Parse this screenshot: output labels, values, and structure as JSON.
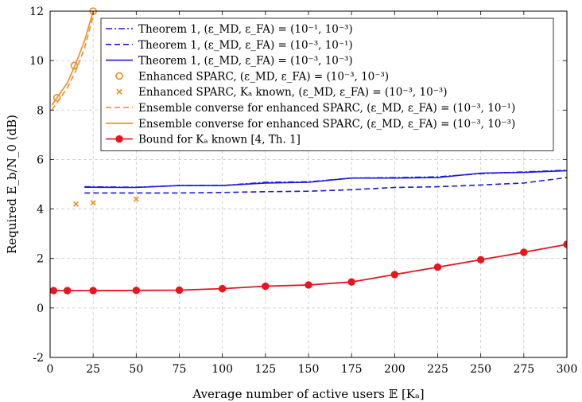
{
  "chart_data": {
    "type": "line",
    "xlabel": "Average number of active users 𝔼 [Kₐ]",
    "ylabel": "Required E_b/N_0 (dB)",
    "xlim": [
      0,
      300
    ],
    "ylim": [
      -2,
      12
    ],
    "xticks": [
      0,
      25,
      50,
      75,
      100,
      125,
      150,
      175,
      200,
      225,
      250,
      275,
      300
    ],
    "yticks": [
      -2,
      0,
      2,
      4,
      6,
      8,
      10,
      12
    ],
    "grid": true,
    "legend_position": "top-right",
    "series": [
      {
        "name": "Theorem 1, (ε_MD, ε_FA) = (10⁻¹, 10⁻³)",
        "color": "#1a1adc",
        "style": "dashdot",
        "marker": "none",
        "x": [
          20,
          50,
          75,
          100,
          125,
          150,
          175,
          200,
          225,
          250,
          275,
          300
        ],
        "y": [
          4.9,
          4.88,
          4.95,
          4.95,
          5.08,
          5.1,
          5.25,
          5.27,
          5.3,
          5.43,
          5.5,
          5.57
        ]
      },
      {
        "name": "Theorem 1, (ε_MD, ε_FA) = (10⁻³, 10⁻¹)",
        "color": "#1a1adc",
        "style": "dashed",
        "marker": "none",
        "x": [
          20,
          50,
          75,
          100,
          125,
          150,
          175,
          200,
          225,
          250,
          275,
          300
        ],
        "y": [
          4.65,
          4.65,
          4.65,
          4.67,
          4.7,
          4.72,
          4.78,
          4.87,
          4.9,
          4.97,
          5.05,
          5.27
        ]
      },
      {
        "name": "Theorem 1, (ε_MD, ε_FA) = (10⁻³, 10⁻³)",
        "color": "#1a1adc",
        "style": "solid",
        "marker": "none",
        "x": [
          20,
          50,
          75,
          100,
          125,
          150,
          175,
          200,
          225,
          250,
          275,
          300
        ],
        "y": [
          4.88,
          4.87,
          4.95,
          4.95,
          5.05,
          5.08,
          5.25,
          5.25,
          5.27,
          5.45,
          5.48,
          5.55
        ]
      },
      {
        "name": "Enhanced SPARC, (ε_MD, ε_FA) = (10⁻³, 10⁻³)",
        "color": "#f08c1e",
        "style": "none",
        "marker": "circle",
        "x": [
          4,
          14,
          25
        ],
        "y": [
          8.5,
          9.8,
          12
        ]
      },
      {
        "name": "Enhanced SPARC, Kₐ known, (ε_MD, ε_FA) = (10⁻³, 10⁻³)",
        "color": "#f08c1e",
        "style": "none",
        "marker": "x",
        "x": [
          15,
          25,
          50
        ],
        "y": [
          4.2,
          4.25,
          4.4
        ]
      },
      {
        "name": "Ensemble converse for enhanced SPARC, (ε_MD, ε_FA) = (10⁻³, 10⁻¹)",
        "color": "#f08c1e",
        "style": "dashed",
        "marker": "none",
        "x": [
          1,
          5,
          10,
          15,
          20,
          25
        ],
        "y": [
          8.0,
          8.4,
          8.9,
          9.6,
          10.5,
          11.8
        ]
      },
      {
        "name": "Ensemble converse for enhanced SPARC, (ε_MD, ε_FA) = (10⁻³, 10⁻³)",
        "color": "#f08c1e",
        "style": "solid",
        "marker": "none",
        "x": [
          1,
          5,
          10,
          15,
          20,
          25
        ],
        "y": [
          8.2,
          8.6,
          9.1,
          9.9,
          10.8,
          12
        ]
      },
      {
        "name": "Bound for Kₐ known [4, Th. 1]",
        "color": "#e8141e",
        "style": "solid",
        "marker": "dot",
        "x": [
          2,
          10,
          25,
          50,
          75,
          100,
          125,
          150,
          175,
          200,
          225,
          250,
          275,
          300
        ],
        "y": [
          0.7,
          0.7,
          0.7,
          0.71,
          0.72,
          0.78,
          0.88,
          0.93,
          1.05,
          1.35,
          1.65,
          1.95,
          2.25,
          2.57
        ]
      }
    ]
  }
}
